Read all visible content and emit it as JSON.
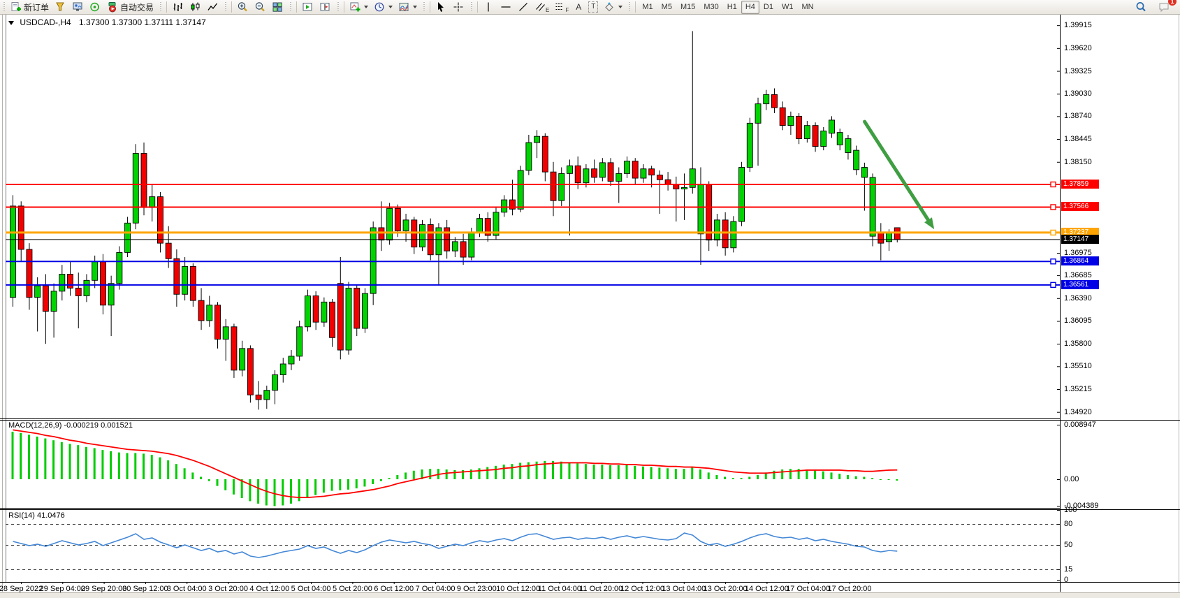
{
  "window": {
    "symbol_title": "USDCAD-,H4",
    "ohlc_text": "1.37300 1.37300 1.37111 1.37147"
  },
  "colors": {
    "bull": "#00D400",
    "bear": "#F20000",
    "outline": "#000000",
    "resistance": "#FF0000",
    "support": "#0000E6",
    "pivot": "#FFA500",
    "current_price": "#000000",
    "macd_bar": "#00CC00",
    "macd_signal": "#FF0000",
    "rsi_line": "#4387D6",
    "arrow": "#3F9E42"
  },
  "toolbar": {
    "groups": [
      {
        "items": [
          {
            "name": "new-order",
            "label": "新订单"
          },
          {
            "name": "tipjar"
          },
          {
            "name": "publisher"
          },
          {
            "name": "sound"
          },
          {
            "name": "autotrading",
            "label": "自动交易"
          }
        ]
      },
      {
        "items": [
          {
            "name": "bar-chart"
          },
          {
            "name": "candlestick-chart"
          },
          {
            "name": "line-chart"
          }
        ]
      },
      {
        "items": [
          {
            "name": "zoom-in"
          },
          {
            "name": "zoom-out"
          },
          {
            "name": "tile-windows"
          }
        ]
      },
      {
        "items": [
          {
            "name": "auto-scroll"
          },
          {
            "name": "chart-shift"
          }
        ]
      },
      {
        "items": [
          {
            "name": "indicators",
            "dropdown": true
          },
          {
            "name": "periods",
            "dropdown": true
          },
          {
            "name": "templates",
            "dropdown": true
          }
        ]
      },
      {
        "items": [
          {
            "name": "cursor"
          },
          {
            "name": "crosshair"
          }
        ]
      },
      {
        "items": [
          {
            "name": "vertical-line"
          },
          {
            "name": "horizontal-line"
          },
          {
            "name": "trendline"
          },
          {
            "name": "equidistant-channel",
            "base": "trendline2",
            "glyph": "E"
          },
          {
            "name": "fibonacci",
            "base": "fibo",
            "glyph": "F"
          },
          {
            "name": "text",
            "glyph": "A"
          },
          {
            "name": "text-label",
            "glyph": "T",
            "boxed": true
          },
          {
            "name": "shapes",
            "dropdown": true
          }
        ]
      }
    ],
    "timeframes": [
      "M1",
      "M5",
      "M15",
      "M30",
      "H1",
      "H4",
      "D1",
      "W1",
      "MN"
    ],
    "active_timeframe": "H4",
    "right": [
      {
        "name": "search"
      },
      {
        "name": "chat",
        "badge": "1"
      }
    ]
  },
  "macd": {
    "name": "MACD(12,26,9)",
    "values_text": "-0.000219 0.001521",
    "axis_ticks": [
      "0.008947",
      "0.00",
      "-0.004389"
    ]
  },
  "rsi": {
    "name": "RSI(14)",
    "value_text": "41.0476",
    "axis_ticks": [
      "100",
      "80",
      "50",
      "15",
      "0"
    ],
    "levels": [
      80,
      50,
      15
    ]
  },
  "chart_data": {
    "type": "candlestick",
    "symbol": "USDCAD-",
    "period": "H4",
    "price_axis_ticks": [
      "1.39915",
      "1.39620",
      "1.39325",
      "1.39030",
      "1.38740",
      "1.38445",
      "1.38150",
      "1.36975",
      "1.36685",
      "1.36390",
      "1.36095",
      "1.35800",
      "1.35510",
      "1.35215",
      "1.34920"
    ],
    "horizontal_lines": [
      {
        "price": 1.37859,
        "label": "1.37859",
        "role": "resistance",
        "color": "#FF0000",
        "width": 2
      },
      {
        "price": 1.37566,
        "label": "1.37566",
        "role": "resistance",
        "color": "#FF0000",
        "width": 2
      },
      {
        "price": 1.37237,
        "label": "1.37237",
        "role": "pivot",
        "color": "#FFA500",
        "width": 3
      },
      {
        "price": 1.37147,
        "label": "1.37147",
        "role": "current-price",
        "color": "#000000",
        "width": 1
      },
      {
        "price": 1.36864,
        "label": "1.36864",
        "role": "support",
        "color": "#0000E6",
        "width": 2
      },
      {
        "price": 1.36561,
        "label": "1.36561",
        "role": "support",
        "color": "#0000E6",
        "width": 2
      }
    ],
    "x_labels": [
      "28 Sep 2022",
      "29 Sep 04:00",
      "29 Sep 20:00",
      "30 Sep 12:00",
      "3 Oct 04:00",
      "3 Oct 20:00",
      "4 Oct 12:00",
      "5 Oct 04:00",
      "5 Oct 20:00",
      "6 Oct 12:00",
      "7 Oct 04:00",
      "9 Oct 23:00",
      "10 Oct 12:00",
      "11 Oct 04:00",
      "11 Oct 20:00",
      "12 Oct 12:00",
      "13 Oct 04:00",
      "13 Oct 20:00",
      "14 Oct 12:00",
      "17 Oct 04:00",
      "17 Oct 20:00"
    ],
    "candles": [
      [
        1.364,
        1.3772,
        1.3628,
        1.3758
      ],
      [
        1.3758,
        1.3764,
        1.3686,
        1.3702
      ],
      [
        1.3702,
        1.371,
        1.3624,
        1.364
      ],
      [
        1.364,
        1.3666,
        1.3596,
        1.3655
      ],
      [
        1.3655,
        1.367,
        1.358,
        1.3622
      ],
      [
        1.3622,
        1.3658,
        1.3588,
        1.3648
      ],
      [
        1.3648,
        1.3682,
        1.3636,
        1.367
      ],
      [
        1.367,
        1.3686,
        1.3642,
        1.3652
      ],
      [
        1.3652,
        1.3672,
        1.36,
        1.3642
      ],
      [
        1.3642,
        1.367,
        1.3634,
        1.3662
      ],
      [
        1.3662,
        1.3694,
        1.3652,
        1.3686
      ],
      [
        1.3686,
        1.3696,
        1.3618,
        1.363
      ],
      [
        1.363,
        1.3668,
        1.359,
        1.3658
      ],
      [
        1.3658,
        1.3706,
        1.365,
        1.3698
      ],
      [
        1.3698,
        1.3744,
        1.3692,
        1.3736
      ],
      [
        1.3736,
        1.3838,
        1.3728,
        1.3826
      ],
      [
        1.3826,
        1.384,
        1.3746,
        1.3756
      ],
      [
        1.3756,
        1.3786,
        1.3738,
        1.377
      ],
      [
        1.377,
        1.3776,
        1.3698,
        1.371
      ],
      [
        1.371,
        1.3732,
        1.3678,
        1.369
      ],
      [
        1.369,
        1.3702,
        1.3628,
        1.3644
      ],
      [
        1.3644,
        1.3692,
        1.3636,
        1.368
      ],
      [
        1.368,
        1.3684,
        1.3628,
        1.3636
      ],
      [
        1.3636,
        1.3652,
        1.3598,
        1.361
      ],
      [
        1.361,
        1.3642,
        1.3602,
        1.363
      ],
      [
        1.363,
        1.3634,
        1.3574,
        1.3586
      ],
      [
        1.3586,
        1.3612,
        1.3558,
        1.3602
      ],
      [
        1.3602,
        1.3606,
        1.3536,
        1.3546
      ],
      [
        1.3546,
        1.3584,
        1.3538,
        1.3574
      ],
      [
        1.3574,
        1.3578,
        1.3504,
        1.3514
      ],
      [
        1.3514,
        1.3532,
        1.3495,
        1.3508
      ],
      [
        1.3508,
        1.3526,
        1.3496,
        1.352
      ],
      [
        1.352,
        1.3546,
        1.3502,
        1.354
      ],
      [
        1.354,
        1.3562,
        1.353,
        1.3554
      ],
      [
        1.3554,
        1.3572,
        1.3546,
        1.3564
      ],
      [
        1.3564,
        1.361,
        1.3558,
        1.3602
      ],
      [
        1.3602,
        1.365,
        1.3596,
        1.3642
      ],
      [
        1.3642,
        1.3648,
        1.3598,
        1.3608
      ],
      [
        1.3608,
        1.364,
        1.3602,
        1.3634
      ],
      [
        1.3634,
        1.3638,
        1.3576,
        1.3588
      ],
      [
        1.3658,
        1.3692,
        1.356,
        1.3572
      ],
      [
        1.3572,
        1.366,
        1.3566,
        1.3652
      ],
      [
        1.3652,
        1.3656,
        1.359,
        1.36
      ],
      [
        1.36,
        1.3652,
        1.3594,
        1.3645
      ],
      [
        1.3645,
        1.3738,
        1.363,
        1.373
      ],
      [
        1.373,
        1.3764,
        1.37,
        1.3714
      ],
      [
        1.3714,
        1.3762,
        1.3708,
        1.3755
      ],
      [
        1.3755,
        1.376,
        1.3718,
        1.3726
      ],
      [
        1.3726,
        1.3748,
        1.3712,
        1.374
      ],
      [
        1.374,
        1.3744,
        1.3696,
        1.3705
      ],
      [
        1.3705,
        1.374,
        1.37,
        1.3734
      ],
      [
        1.3734,
        1.3742,
        1.3688,
        1.3695
      ],
      [
        1.3695,
        1.3736,
        1.3656,
        1.373
      ],
      [
        1.373,
        1.374,
        1.369,
        1.37
      ],
      [
        1.37,
        1.3718,
        1.3692,
        1.3712
      ],
      [
        1.3712,
        1.3722,
        1.3682,
        1.3692
      ],
      [
        1.3692,
        1.373,
        1.3688,
        1.3724
      ],
      [
        1.3724,
        1.3748,
        1.3718,
        1.3742
      ],
      [
        1.3742,
        1.375,
        1.3712,
        1.372
      ],
      [
        1.372,
        1.3756,
        1.3715,
        1.375
      ],
      [
        1.375,
        1.3772,
        1.3744,
        1.3766
      ],
      [
        1.3766,
        1.3792,
        1.3746,
        1.3754
      ],
      [
        1.3754,
        1.381,
        1.375,
        1.3804
      ],
      [
        1.3804,
        1.385,
        1.3798,
        1.384
      ],
      [
        1.384,
        1.3856,
        1.382,
        1.3848
      ],
      [
        1.3848,
        1.3852,
        1.379,
        1.3802
      ],
      [
        1.3802,
        1.3815,
        1.3745,
        1.3765
      ],
      [
        1.3765,
        1.3808,
        1.3758,
        1.38
      ],
      [
        1.38,
        1.3818,
        1.372,
        1.381
      ],
      [
        1.381,
        1.3822,
        1.378,
        1.3788
      ],
      [
        1.3788,
        1.3812,
        1.3782,
        1.3806
      ],
      [
        1.3806,
        1.3818,
        1.3788,
        1.3795
      ],
      [
        1.3795,
        1.382,
        1.379,
        1.3814
      ],
      [
        1.3814,
        1.382,
        1.3784,
        1.379
      ],
      [
        1.379,
        1.3808,
        1.3762,
        1.38
      ],
      [
        1.38,
        1.3822,
        1.3794,
        1.3816
      ],
      [
        1.3816,
        1.382,
        1.3786,
        1.3794
      ],
      [
        1.3794,
        1.3812,
        1.3788,
        1.3806
      ],
      [
        1.3806,
        1.381,
        1.3782,
        1.3798
      ],
      [
        1.3798,
        1.3804,
        1.3748,
        1.3792
      ],
      [
        1.3792,
        1.3802,
        1.3778,
        1.3786
      ],
      [
        1.3786,
        1.3796,
        1.3738,
        1.378
      ],
      [
        1.378,
        1.38,
        1.374,
        1.3782
      ],
      [
        1.3782,
        1.3984,
        1.3774,
        1.3806
      ],
      [
        1.3722,
        1.3808,
        1.3682,
        1.3786
      ],
      [
        1.3786,
        1.379,
        1.37,
        1.3714
      ],
      [
        1.3714,
        1.3748,
        1.3706,
        1.374
      ],
      [
        1.374,
        1.375,
        1.3694,
        1.3704
      ],
      [
        1.3704,
        1.3745,
        1.3698,
        1.3738
      ],
      [
        1.3738,
        1.3815,
        1.3732,
        1.3808
      ],
      [
        1.3808,
        1.3872,
        1.3802,
        1.3865
      ],
      [
        1.3865,
        1.3898,
        1.381,
        1.389
      ],
      [
        1.389,
        1.3908,
        1.3882,
        1.3902
      ],
      [
        1.3902,
        1.391,
        1.3878,
        1.3885
      ],
      [
        1.3885,
        1.3893,
        1.3856,
        1.3862
      ],
      [
        1.3862,
        1.388,
        1.385,
        1.3874
      ],
      [
        1.3874,
        1.3878,
        1.3838,
        1.3845
      ],
      [
        1.3845,
        1.3868,
        1.384,
        1.3862
      ],
      [
        1.3862,
        1.3866,
        1.3828,
        1.3835
      ],
      [
        1.3835,
        1.386,
        1.383,
        1.3855
      ],
      [
        1.3852,
        1.3874,
        1.3846,
        1.3869
      ],
      [
        1.3837,
        1.3858,
        1.383,
        1.3853
      ],
      [
        1.3827,
        1.385,
        1.3818,
        1.3845
      ],
      [
        1.3805,
        1.3836,
        1.3798,
        1.383
      ],
      [
        1.3795,
        1.3814,
        1.3752,
        1.3808
      ],
      [
        1.3719,
        1.38,
        1.3706,
        1.3795
      ],
      [
        1.3724,
        1.3736,
        1.3688,
        1.371
      ],
      [
        1.3712,
        1.3728,
        1.37,
        1.3723
      ],
      [
        1.373,
        1.373,
        1.3711,
        1.37147
      ]
    ],
    "macd_values": [
      0.0078,
      0.0076,
      0.0073,
      0.007,
      0.0067,
      0.0064,
      0.0061,
      0.0058,
      0.0056,
      0.0053,
      0.0051,
      0.0048,
      0.0046,
      0.0044,
      0.0043,
      0.0043,
      0.0042,
      0.004,
      0.0036,
      0.0031,
      0.0025,
      0.0018,
      0.0011,
      0.0004,
      -0.0003,
      -0.0011,
      -0.0018,
      -0.0025,
      -0.0031,
      -0.0036,
      -0.004,
      -0.0043,
      -0.0044,
      -0.0043,
      -0.004,
      -0.0036,
      -0.0031,
      -0.0026,
      -0.0022,
      -0.0019,
      -0.0018,
      -0.0017,
      -0.0015,
      -0.0012,
      -0.0008,
      -0.0003,
      0.0002,
      0.0007,
      0.0011,
      0.0014,
      0.0016,
      0.0017,
      0.0017,
      0.0016,
      0.0015,
      0.0015,
      0.0016,
      0.0018,
      0.002,
      0.0022,
      0.0024,
      0.0025,
      0.0027,
      0.0028,
      0.0029,
      0.003,
      0.003,
      0.0029,
      0.0027,
      0.0026,
      0.0025,
      0.0024,
      0.0024,
      0.0023,
      0.0023,
      0.0023,
      0.0022,
      0.0021,
      0.002,
      0.0019,
      0.0018,
      0.0017,
      0.0017,
      0.0019,
      0.0016,
      0.0011,
      0.0007,
      0.0004,
      0.0002,
      0.0002,
      0.0004,
      0.0007,
      0.0011,
      0.0014,
      0.0016,
      0.0017,
      0.0017,
      0.0016,
      0.0015,
      0.0013,
      0.0011,
      0.0009,
      0.0007,
      0.0005,
      0.0004,
      0.0002,
      0.0,
      -0.0001,
      -0.000219
    ],
    "macd_signal": [
      0.0081,
      0.0079,
      0.0077,
      0.0075,
      0.0072,
      0.007,
      0.0067,
      0.0064,
      0.0062,
      0.0059,
      0.0057,
      0.0055,
      0.0053,
      0.0051,
      0.0049,
      0.0048,
      0.0047,
      0.0046,
      0.0044,
      0.0042,
      0.0039,
      0.0035,
      0.0031,
      0.0026,
      0.0021,
      0.0015,
      0.0009,
      0.0003,
      -0.0003,
      -0.0009,
      -0.0015,
      -0.002,
      -0.0024,
      -0.0027,
      -0.0029,
      -0.003,
      -0.003,
      -0.0029,
      -0.0028,
      -0.0026,
      -0.0024,
      -0.0023,
      -0.0021,
      -0.0019,
      -0.0017,
      -0.0014,
      -0.0011,
      -0.0007,
      -0.0004,
      -0.0001,
      0.0002,
      0.0005,
      0.0008,
      0.001,
      0.0011,
      0.0012,
      0.0013,
      0.0014,
      0.0015,
      0.0016,
      0.0018,
      0.0019,
      0.0021,
      0.0022,
      0.0024,
      0.0025,
      0.0026,
      0.0027,
      0.0027,
      0.0027,
      0.0027,
      0.0026,
      0.0026,
      0.0025,
      0.0025,
      0.0024,
      0.0024,
      0.0023,
      0.0023,
      0.0022,
      0.0021,
      0.0021,
      0.002,
      0.002,
      0.0019,
      0.0018,
      0.0016,
      0.0014,
      0.0012,
      0.0011,
      0.001,
      0.001,
      0.001,
      0.0011,
      0.0012,
      0.0013,
      0.0014,
      0.0015,
      0.0015,
      0.0015,
      0.0015,
      0.0015,
      0.0014,
      0.0014,
      0.0013,
      0.0013,
      0.0014,
      0.0015,
      0.001521
    ],
    "rsi_values": [
      55,
      52,
      49,
      51,
      48,
      52,
      56,
      53,
      50,
      52,
      55,
      49,
      53,
      57,
      61,
      66,
      58,
      60,
      54,
      50,
      46,
      50,
      46,
      42,
      45,
      40,
      42,
      37,
      40,
      34,
      32,
      34,
      37,
      40,
      42,
      44,
      49,
      45,
      47,
      42,
      38,
      42,
      39,
      43,
      49,
      54,
      57,
      55,
      53,
      55,
      52,
      50,
      45,
      48,
      51,
      49,
      53,
      56,
      54,
      57,
      59,
      56,
      61,
      65,
      66,
      62,
      58,
      60,
      61,
      58,
      60,
      59,
      61,
      58,
      61,
      63,
      60,
      62,
      60,
      58,
      57,
      59,
      67,
      64,
      55,
      50,
      52,
      48,
      51,
      55,
      60,
      64,
      66,
      62,
      60,
      61,
      58,
      60,
      56,
      58,
      55,
      53,
      51,
      48,
      47,
      42,
      40,
      42,
      41.05
    ],
    "annotations": [
      {
        "type": "arrow",
        "from_bar": 104.4,
        "from_price": 1.3867,
        "to_bar": 112.9,
        "to_price": 1.3728
      }
    ]
  }
}
